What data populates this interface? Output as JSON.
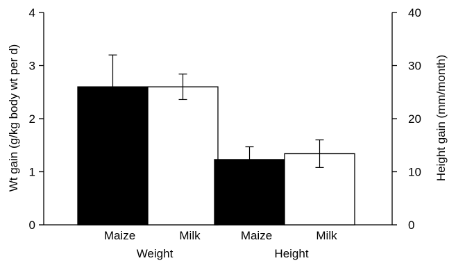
{
  "chart_data": {
    "type": "bar",
    "title": "",
    "left_axis": {
      "label": "Wt gain (g/kg body wt per d)",
      "range": [
        0,
        4
      ],
      "ticks": [
        "0",
        "1",
        "2",
        "3",
        "4"
      ]
    },
    "right_axis": {
      "label": "Height gain (mm/month)",
      "range": [
        0,
        40
      ],
      "ticks": [
        "0",
        "10",
        "20",
        "30",
        "40"
      ]
    },
    "groups": [
      {
        "name": "Weight",
        "axis": "left"
      },
      {
        "name": "Height",
        "axis": "right"
      }
    ],
    "bars": [
      {
        "group": "Weight",
        "category": "Maize",
        "value": 2.6,
        "error": 0.6,
        "color": "#000000"
      },
      {
        "group": "Weight",
        "category": "Milk",
        "value": 2.6,
        "error": 0.24,
        "color": "#ffffff"
      },
      {
        "group": "Height",
        "category": "Maize",
        "value": 12.3,
        "error": 2.4,
        "color": "#000000"
      },
      {
        "group": "Height",
        "category": "Milk",
        "value": 13.4,
        "error": 2.6,
        "color": "#ffffff"
      }
    ],
    "grid": false,
    "legend": "none"
  }
}
